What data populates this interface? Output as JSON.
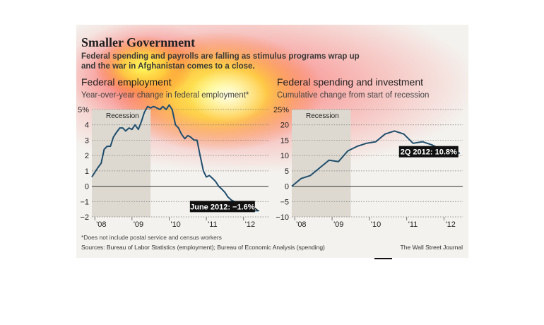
{
  "header": {
    "title": "Smaller Government",
    "subtitle": "Federal spending and payrolls are falling as stimulus programs wrap up and the war in Afghanistan comes to a close."
  },
  "footer": {
    "footnote": "*Does not include postal service and census workers",
    "sources": "Sources: Bureau of Labor Statistics (employment); Bureau of Economic Analysis (spending)",
    "credit": "The Wall Street Journal"
  },
  "colors": {
    "line": "#1f4e6e",
    "recession": "#ddd9d0",
    "callout": "#111111",
    "grid": "#777777"
  },
  "chart_data": [
    {
      "type": "line",
      "title": "Federal employment",
      "subtitle": "Year-over-year change in federal employment*",
      "xlabel": "",
      "ylabel": "",
      "xlim": [
        2007.92,
        2012.67
      ],
      "ylim": [
        -2,
        5
      ],
      "yticks": [
        "5%",
        "4",
        "3",
        "2",
        "1",
        "0",
        "−1",
        "−2"
      ],
      "ytick_values": [
        5,
        4,
        3,
        2,
        1,
        0,
        -1,
        -2
      ],
      "xticks": [
        "'08",
        "'09",
        "'10",
        "'11",
        "'12"
      ],
      "xtick_values": [
        2008,
        2009,
        2010,
        2011,
        2012
      ],
      "grid": true,
      "shaded_region": {
        "label": "Recession",
        "from": 2007.92,
        "to": 2009.5
      },
      "annotation": {
        "text": "June 2012: −1.6%",
        "x": 2012.42,
        "y": -1.6
      },
      "series": [
        {
          "x": [
            2007.92,
            2008.0,
            2008.08,
            2008.17,
            2008.25,
            2008.33,
            2008.42,
            2008.5,
            2008.58,
            2008.67,
            2008.75,
            2008.83,
            2008.92,
            2009.0,
            2009.08,
            2009.17,
            2009.25,
            2009.33,
            2009.42,
            2009.5,
            2009.58,
            2009.67,
            2009.75,
            2009.83,
            2009.92,
            2010.0,
            2010.08,
            2010.17,
            2010.25,
            2010.33,
            2010.42,
            2010.5,
            2010.58,
            2010.67,
            2010.75,
            2010.83,
            2010.92,
            2011.0,
            2011.08,
            2011.17,
            2011.25,
            2011.33,
            2011.42,
            2011.5,
            2011.58,
            2011.67,
            2011.75,
            2011.83,
            2011.92,
            2012.0,
            2012.08,
            2012.17,
            2012.25,
            2012.33,
            2012.42
          ],
          "values": [
            0.6,
            0.9,
            1.2,
            1.5,
            2.4,
            2.6,
            2.6,
            3.2,
            3.5,
            3.8,
            3.8,
            3.6,
            3.8,
            3.7,
            4.0,
            3.7,
            4.2,
            4.8,
            5.2,
            5.1,
            5.2,
            5.1,
            5.0,
            5.2,
            5.0,
            5.3,
            5.0,
            4.0,
            3.8,
            3.4,
            3.1,
            3.3,
            3.2,
            3.0,
            3.0,
            2.0,
            1.0,
            0.6,
            0.7,
            0.5,
            0.3,
            0.0,
            -0.2,
            -0.4,
            -0.7,
            -0.9,
            -1.0,
            -1.2,
            -1.4,
            -1.5,
            -1.5,
            -1.6,
            -1.6,
            -1.6,
            -1.6
          ]
        }
      ]
    },
    {
      "type": "line",
      "title": "Federal spending and investment",
      "subtitle": "Cumulative change from start of recession",
      "xlabel": "",
      "ylabel": "",
      "xlim": [
        2007.92,
        2012.5
      ],
      "ylim": [
        -10,
        25
      ],
      "yticks": [
        "25%",
        "20",
        "15",
        "10",
        "5",
        "0",
        "−5",
        "−10"
      ],
      "ytick_values": [
        25,
        20,
        15,
        10,
        5,
        0,
        -5,
        -10
      ],
      "xticks": [
        "'08",
        "'09",
        "'10",
        "'11",
        "'12"
      ],
      "xtick_values": [
        2008,
        2009,
        2010,
        2011,
        2012
      ],
      "grid": true,
      "shaded_region": {
        "label": "Recession",
        "from": 2007.92,
        "to": 2009.5
      },
      "annotation": {
        "text": "2Q 2012: 10.8%",
        "x": 2012.42,
        "y": 10.8
      },
      "series": [
        {
          "x": [
            2007.92,
            2008.17,
            2008.42,
            2008.67,
            2008.92,
            2009.17,
            2009.42,
            2009.67,
            2009.92,
            2010.17,
            2010.42,
            2010.67,
            2010.92,
            2011.17,
            2011.42,
            2011.67,
            2011.92,
            2012.17,
            2012.42
          ],
          "values": [
            0.0,
            2.5,
            3.5,
            6.0,
            8.5,
            8.0,
            11.5,
            13.0,
            14.0,
            14.5,
            17.0,
            18.0,
            17.0,
            14.0,
            14.5,
            13.5,
            12.0,
            11.0,
            10.8
          ]
        }
      ]
    }
  ]
}
